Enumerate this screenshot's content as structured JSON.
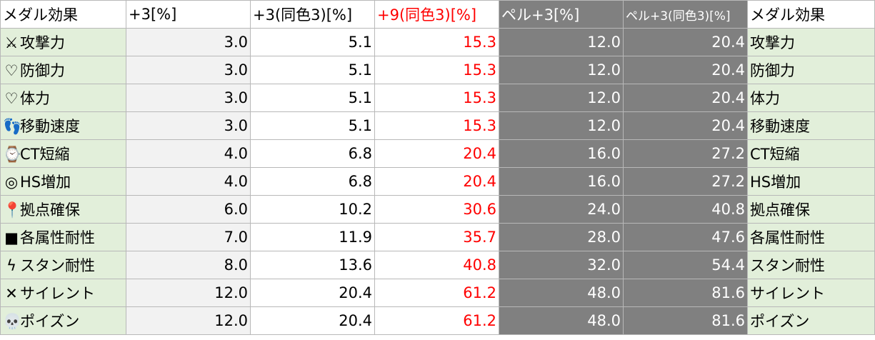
{
  "header": {
    "col1": "メダル効果",
    "col2": "+3[%]",
    "col3": "+3(同色3)[%]",
    "col4": "+9(同色3)[%]",
    "col5": "ペル+3[%]",
    "col6": "ペル+3(同色3)[%]",
    "col7": "メダル効果"
  },
  "colors": {
    "name_bg": "#e2efda",
    "plus3_bg": "#f2f2f2",
    "plus9_text": "#ff0000",
    "pel_bg": "#808080",
    "pel_text": "#ffffff",
    "grid": "#b8b8b8"
  },
  "rows": [
    {
      "icon": "⚔",
      "icon_name": "crossed-swords-icon",
      "name": "攻撃力",
      "plus3": "3.0",
      "same3": "5.1",
      "plus9": "15.3",
      "pel3": "12.0",
      "pel_same3": "20.4",
      "name_right": "攻撃力"
    },
    {
      "icon": "♡",
      "icon_name": "shield-icon",
      "name": "防御力",
      "plus3": "3.0",
      "same3": "5.1",
      "plus9": "15.3",
      "pel3": "12.0",
      "pel_same3": "20.4",
      "name_right": "防御力"
    },
    {
      "icon": "♡",
      "icon_name": "heart-icon",
      "name": "体力",
      "plus3": "3.0",
      "same3": "5.1",
      "plus9": "15.3",
      "pel3": "12.0",
      "pel_same3": "20.4",
      "name_right": "体力"
    },
    {
      "icon": "👣",
      "icon_name": "footprints-icon",
      "name": "移動速度",
      "plus3": "3.0",
      "same3": "5.1",
      "plus9": "15.3",
      "pel3": "12.0",
      "pel_same3": "20.4",
      "name_right": "移動速度"
    },
    {
      "icon": "⌚",
      "icon_name": "stopwatch-icon",
      "name": "CT短縮",
      "plus3": "4.0",
      "same3": "6.8",
      "plus9": "20.4",
      "pel3": "16.0",
      "pel_same3": "27.2",
      "name_right": "CT短縮"
    },
    {
      "icon": "◎",
      "icon_name": "target-icon",
      "name": "HS増加",
      "plus3": "4.0",
      "same3": "6.8",
      "plus9": "20.4",
      "pel3": "16.0",
      "pel_same3": "27.2",
      "name_right": "HS増加"
    },
    {
      "icon": "📍",
      "icon_name": "pin-icon",
      "name": "拠点確保",
      "plus3": "6.0",
      "same3": "10.2",
      "plus9": "30.6",
      "pel3": "24.0",
      "pel_same3": "40.8",
      "name_right": "拠点確保"
    },
    {
      "icon": "■",
      "icon_name": "square-icon",
      "name": "各属性耐性",
      "plus3": "7.0",
      "same3": "11.9",
      "plus9": "35.7",
      "pel3": "28.0",
      "pel_same3": "47.6",
      "name_right": "各属性耐性"
    },
    {
      "icon": "ϟ",
      "icon_name": "lightning-icon",
      "name": "スタン耐性",
      "plus3": "8.0",
      "same3": "13.6",
      "plus9": "40.8",
      "pel3": "32.0",
      "pel_same3": "54.4",
      "name_right": "スタン耐性"
    },
    {
      "icon": "✕",
      "icon_name": "cross-icon",
      "name": "サイレント",
      "plus3": "12.0",
      "same3": "20.4",
      "plus9": "61.2",
      "pel3": "48.0",
      "pel_same3": "81.6",
      "name_right": "サイレント"
    },
    {
      "icon": "💀",
      "icon_name": "skull-icon",
      "name": "ポイズン",
      "plus3": "12.0",
      "same3": "20.4",
      "plus9": "61.2",
      "pel3": "48.0",
      "pel_same3": "81.6",
      "name_right": "ポイズン"
    }
  ]
}
